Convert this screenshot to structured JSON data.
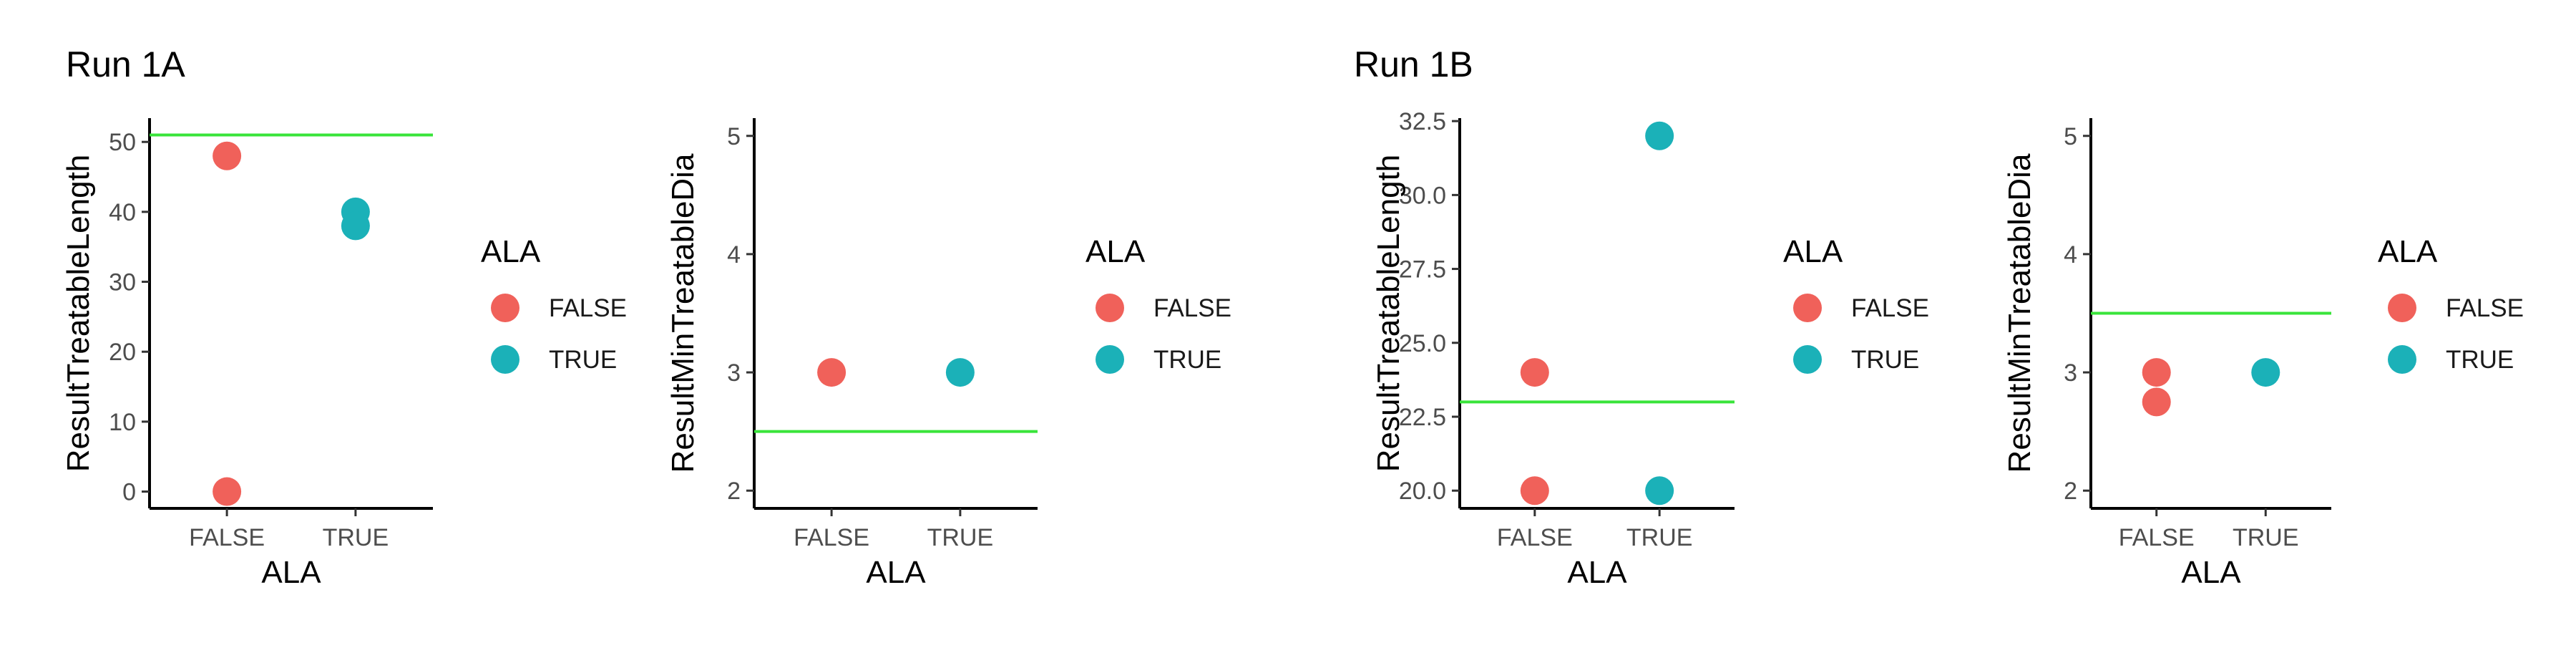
{
  "runs": [
    {
      "title": "Run 1A"
    },
    {
      "title": "Run 1B"
    }
  ],
  "colors": {
    "FALSE": "#F0615A",
    "TRUE": "#1BB1B8",
    "reference_line": "#39E43A",
    "axis": "#000000"
  },
  "chart_data": [
    {
      "type": "scatter",
      "run": "Run 1A",
      "xlabel": "ALA",
      "ylabel": "ResultTreatableLength",
      "categories": [
        "FALSE",
        "TRUE"
      ],
      "ylim": [
        -2.4,
        53.4
      ],
      "yticks": [
        0,
        10,
        20,
        30,
        40,
        50
      ],
      "ytick_labels": [
        "0",
        "10",
        "20",
        "30",
        "40",
        "50"
      ],
      "reference_line": 51,
      "legend": {
        "title": "ALA",
        "entries": [
          "FALSE",
          "TRUE"
        ],
        "position": "right"
      },
      "points": [
        {
          "x": "FALSE",
          "y": 48
        },
        {
          "x": "FALSE",
          "y": 0
        },
        {
          "x": "TRUE",
          "y": 40
        },
        {
          "x": "TRUE",
          "y": 38
        }
      ]
    },
    {
      "type": "scatter",
      "run": "Run 1A",
      "xlabel": "ALA",
      "ylabel": "ResultMinTreatableDia",
      "categories": [
        "FALSE",
        "TRUE"
      ],
      "ylim": [
        1.85,
        5.15
      ],
      "yticks": [
        2,
        3,
        4,
        5
      ],
      "ytick_labels": [
        "2",
        "3",
        "4",
        "5"
      ],
      "reference_line": 2.5,
      "legend": {
        "title": "ALA",
        "entries": [
          "FALSE",
          "TRUE"
        ],
        "position": "right"
      },
      "points": [
        {
          "x": "FALSE",
          "y": 3
        },
        {
          "x": "TRUE",
          "y": 3
        }
      ]
    },
    {
      "type": "scatter",
      "run": "Run 1B",
      "xlabel": "ALA",
      "ylabel": "ResultTreatableLength",
      "categories": [
        "FALSE",
        "TRUE"
      ],
      "ylim": [
        19.4,
        32.6
      ],
      "yticks": [
        20,
        22.5,
        25,
        27.5,
        30,
        32.5
      ],
      "ytick_labels": [
        "20.0",
        "22.5",
        "25.0",
        "27.5",
        "30.0",
        "32.5"
      ],
      "reference_line": 23,
      "legend": {
        "title": "ALA",
        "entries": [
          "FALSE",
          "TRUE"
        ],
        "position": "right"
      },
      "points": [
        {
          "x": "FALSE",
          "y": 24
        },
        {
          "x": "FALSE",
          "y": 20
        },
        {
          "x": "TRUE",
          "y": 32
        },
        {
          "x": "TRUE",
          "y": 20
        }
      ]
    },
    {
      "type": "scatter",
      "run": "Run 1B",
      "xlabel": "ALA",
      "ylabel": "ResultMinTreatableDia",
      "categories": [
        "FALSE",
        "TRUE"
      ],
      "ylim": [
        1.85,
        5.15
      ],
      "yticks": [
        2,
        3,
        4,
        5
      ],
      "ytick_labels": [
        "2",
        "3",
        "4",
        "5"
      ],
      "reference_line": 3.5,
      "legend": {
        "title": "ALA",
        "entries": [
          "FALSE",
          "TRUE"
        ],
        "position": "right"
      },
      "points": [
        {
          "x": "FALSE",
          "y": 3
        },
        {
          "x": "FALSE",
          "y": 2.75
        },
        {
          "x": "TRUE",
          "y": 3
        }
      ]
    }
  ]
}
